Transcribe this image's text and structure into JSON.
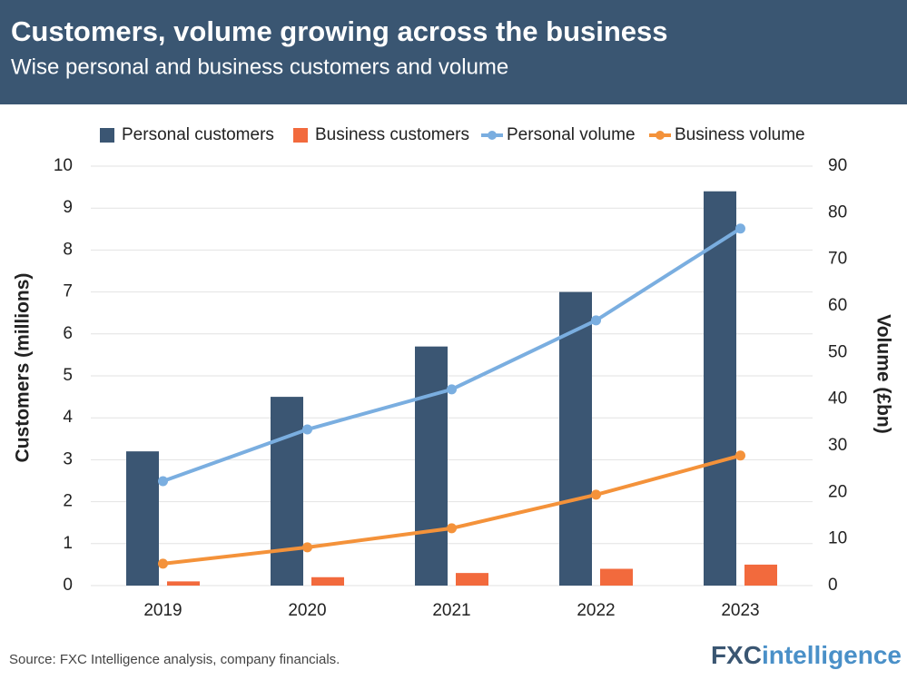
{
  "chart_data": {
    "type": "bar",
    "title": "Customers, volume growing across the business",
    "subtitle": "Wise personal and business customers and volume",
    "categories": [
      "2019",
      "2020",
      "2021",
      "2022",
      "2023"
    ],
    "series": [
      {
        "name": "Personal customers",
        "type": "bar",
        "color": "#3b5673",
        "values": [
          3.2,
          4.5,
          5.7,
          7.0,
          9.4
        ]
      },
      {
        "name": "Business customers",
        "type": "bar",
        "color": "#f26a3d",
        "values": [
          0.1,
          0.2,
          0.3,
          0.4,
          0.5
        ]
      },
      {
        "name": "Personal volume",
        "type": "line",
        "axis": "y2",
        "color": "#7aaee0",
        "values": [
          22.4,
          33.5,
          42.1,
          56.9,
          76.6
        ]
      },
      {
        "name": "Business volume",
        "type": "line",
        "axis": "y2",
        "color": "#f4923a",
        "values": [
          4.7,
          8.2,
          12.3,
          19.5,
          27.9
        ]
      }
    ],
    "ylabel": "Customers (millions)",
    "y2label": "Volume (£bn)",
    "ylim": [
      0,
      10
    ],
    "yticks": [
      0,
      1,
      2,
      3,
      4,
      5,
      6,
      7,
      8,
      9,
      10
    ],
    "y2lim": [
      0,
      90
    ],
    "y2ticks": [
      0,
      10,
      20,
      30,
      40,
      50,
      60,
      70,
      80,
      90
    ],
    "grid": true,
    "source": "Source: FXC Intelligence analysis, company financials.",
    "logo": {
      "prefix": "FXC",
      "suffix": "intelligence"
    }
  }
}
